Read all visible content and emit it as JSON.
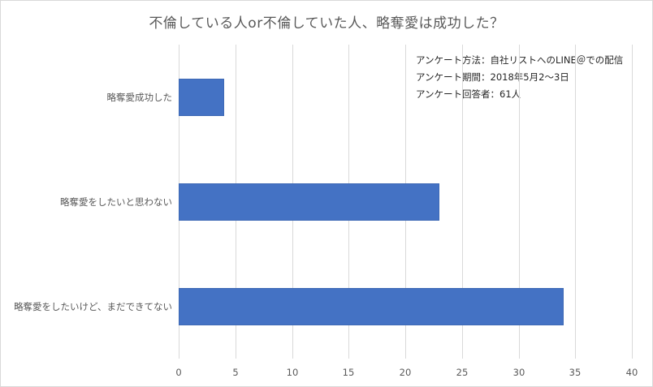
{
  "chart_data": {
    "type": "bar",
    "orientation": "horizontal",
    "title": "不倫している人or不倫していた人、略奪愛は成功した？",
    "categories": [
      "略奪愛成功した",
      "略奪愛をしたいと思わない",
      "略奪愛をしたいけど、まだできてない"
    ],
    "values": [
      4,
      23,
      34
    ],
    "xlabel": "",
    "ylabel": "",
    "xlim": [
      0,
      40
    ],
    "x_ticks": [
      "0",
      "5",
      "10",
      "15",
      "20",
      "25",
      "30",
      "35",
      "40"
    ],
    "grid": true,
    "legend": null,
    "bar_color": "#4472c4",
    "annotations": [
      "アンケート方法：自社リストへのLINE＠での配信",
      "アンケート期間：2018年5月2〜3日",
      "アンケート回答者：61人"
    ]
  },
  "notes": {
    "method": "アンケート方法：自社リストへのLINE＠での配信",
    "period": "アンケート期間：2018年5月2〜3日",
    "respondents": "アンケート回答者：61人"
  }
}
